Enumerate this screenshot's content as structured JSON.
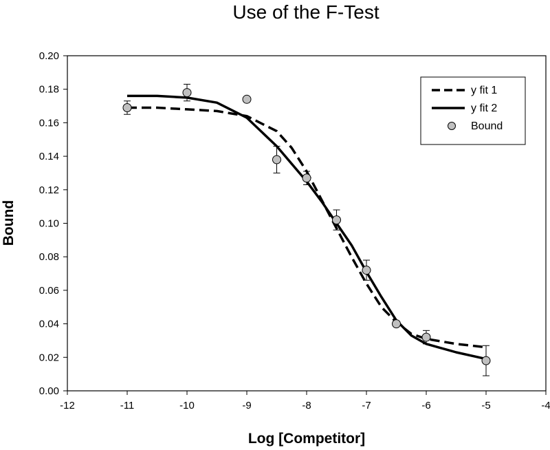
{
  "chart_data": {
    "type": "scatter",
    "title": "Use of the F-Test",
    "xlabel": "Log [Competitor]",
    "ylabel": "Bound",
    "xlim": [
      -12,
      -4
    ],
    "ylim": [
      0.0,
      0.2
    ],
    "xticks": [
      -12,
      -11,
      -10,
      -9,
      -8,
      -7,
      -6,
      -5,
      -4
    ],
    "yticks": [
      0.0,
      0.02,
      0.04,
      0.06,
      0.08,
      0.1,
      0.12,
      0.14,
      0.16,
      0.18,
      0.2
    ],
    "xtick_labels": [
      "-12",
      "-11",
      "-10",
      "-9",
      "-8",
      "-7",
      "-6",
      "-5",
      "-4"
    ],
    "ytick_labels": [
      "0.00",
      "0.02",
      "0.04",
      "0.06",
      "0.08",
      "0.10",
      "0.12",
      "0.14",
      "0.16",
      "0.18",
      "0.20"
    ],
    "grid": false,
    "legend_position": "top-right",
    "series": [
      {
        "name": "y fit 1",
        "style": "dashed-line",
        "color": "#000000",
        "x": [
          -11,
          -10.5,
          -10,
          -9.5,
          -9,
          -8.5,
          -8.25,
          -8,
          -7.75,
          -7.5,
          -7.25,
          -7,
          -6.75,
          -6.5,
          -6.25,
          -6,
          -5.5,
          -5
        ],
        "y": [
          0.169,
          0.169,
          0.168,
          0.167,
          0.164,
          0.155,
          0.145,
          0.131,
          0.114,
          0.097,
          0.08,
          0.064,
          0.05,
          0.041,
          0.034,
          0.031,
          0.028,
          0.026
        ]
      },
      {
        "name": "y fit 2",
        "style": "solid-line",
        "color": "#000000",
        "x": [
          -11,
          -10.5,
          -10,
          -9.5,
          -9,
          -8.5,
          -8,
          -7.75,
          -7.5,
          -7.25,
          -7,
          -6.75,
          -6.5,
          -6.25,
          -6,
          -5.5,
          -5
        ],
        "y": [
          0.176,
          0.176,
          0.175,
          0.172,
          0.163,
          0.146,
          0.125,
          0.113,
          0.1,
          0.087,
          0.071,
          0.056,
          0.042,
          0.033,
          0.028,
          0.023,
          0.019
        ]
      },
      {
        "name": "Bound",
        "style": "points",
        "color": "#c0c0c0",
        "x": [
          -11,
          -10,
          -9,
          -8.5,
          -8,
          -7.5,
          -7,
          -6.5,
          -6,
          -5
        ],
        "y": [
          0.169,
          0.178,
          0.174,
          0.138,
          0.127,
          0.102,
          0.072,
          0.04,
          0.032,
          0.018
        ],
        "error": [
          0.004,
          0.005,
          0,
          0.008,
          0.004,
          0.006,
          0.006,
          0.001,
          0.004,
          0.009
        ]
      }
    ]
  }
}
